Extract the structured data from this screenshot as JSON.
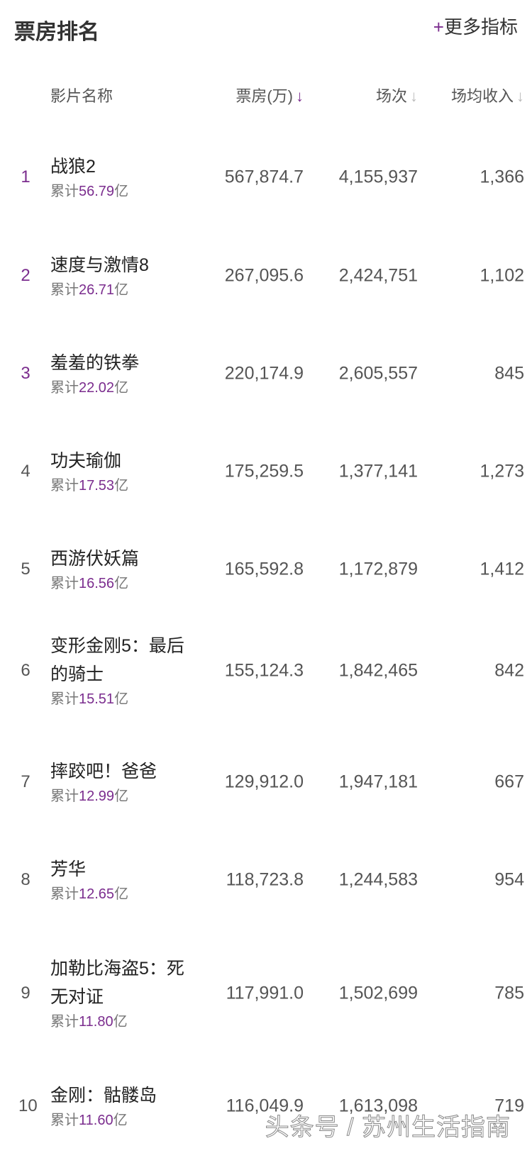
{
  "header": {
    "title": "票房排名",
    "more_plus": "+",
    "more_label": "更多指标"
  },
  "columns": [
    {
      "label": "影片名称"
    },
    {
      "label": "票房(万)",
      "arrow": "↓",
      "active": true
    },
    {
      "label": "场次",
      "arrow": "↓",
      "active": false
    },
    {
      "label": "场均收入",
      "arrow": "↓",
      "active": false
    }
  ],
  "accent_color": "#7b2d8e",
  "rows": [
    {
      "rank": "1",
      "name": "战狼2",
      "total_prefix": "累计",
      "total": "56.79",
      "total_unit": "亿",
      "box_office": "567,874.7",
      "shows": "4,155,937",
      "avg": "1,366"
    },
    {
      "rank": "2",
      "name": "速度与激情8",
      "total_prefix": "累计",
      "total": "26.71",
      "total_unit": "亿",
      "box_office": "267,095.6",
      "shows": "2,424,751",
      "avg": "1,102"
    },
    {
      "rank": "3",
      "name": "羞羞的铁拳",
      "total_prefix": "累计",
      "total": "22.02",
      "total_unit": "亿",
      "box_office": "220,174.9",
      "shows": "2,605,557",
      "avg": "845"
    },
    {
      "rank": "4",
      "name": "功夫瑜伽",
      "total_prefix": "累计",
      "total": "17.53",
      "total_unit": "亿",
      "box_office": "175,259.5",
      "shows": "1,377,141",
      "avg": "1,273"
    },
    {
      "rank": "5",
      "name": "西游伏妖篇",
      "total_prefix": "累计",
      "total": "16.56",
      "total_unit": "亿",
      "box_office": "165,592.8",
      "shows": "1,172,879",
      "avg": "1,412"
    },
    {
      "rank": "6",
      "name": "变形金刚5：最后的骑士",
      "total_prefix": "累计",
      "total": "15.51",
      "total_unit": "亿",
      "box_office": "155,124.3",
      "shows": "1,842,465",
      "avg": "842"
    },
    {
      "rank": "7",
      "name": "摔跤吧！爸爸",
      "total_prefix": "累计",
      "total": "12.99",
      "total_unit": "亿",
      "box_office": "129,912.0",
      "shows": "1,947,181",
      "avg": "667"
    },
    {
      "rank": "8",
      "name": "芳华",
      "total_prefix": "累计",
      "total": "12.65",
      "total_unit": "亿",
      "box_office": "118,723.8",
      "shows": "1,244,583",
      "avg": "954"
    },
    {
      "rank": "9",
      "name": "加勒比海盗5：死无对证",
      "total_prefix": "累计",
      "total": "11.80",
      "total_unit": "亿",
      "box_office": "117,991.0",
      "shows": "1,502,699",
      "avg": "785"
    },
    {
      "rank": "10",
      "name": "金刚：骷髅岛",
      "total_prefix": "累计",
      "total": "11.60",
      "total_unit": "亿",
      "box_office": "116,049.9",
      "shows": "1,613,098",
      "avg": "719"
    }
  ],
  "watermark": "头条号 / 苏州生活指南"
}
